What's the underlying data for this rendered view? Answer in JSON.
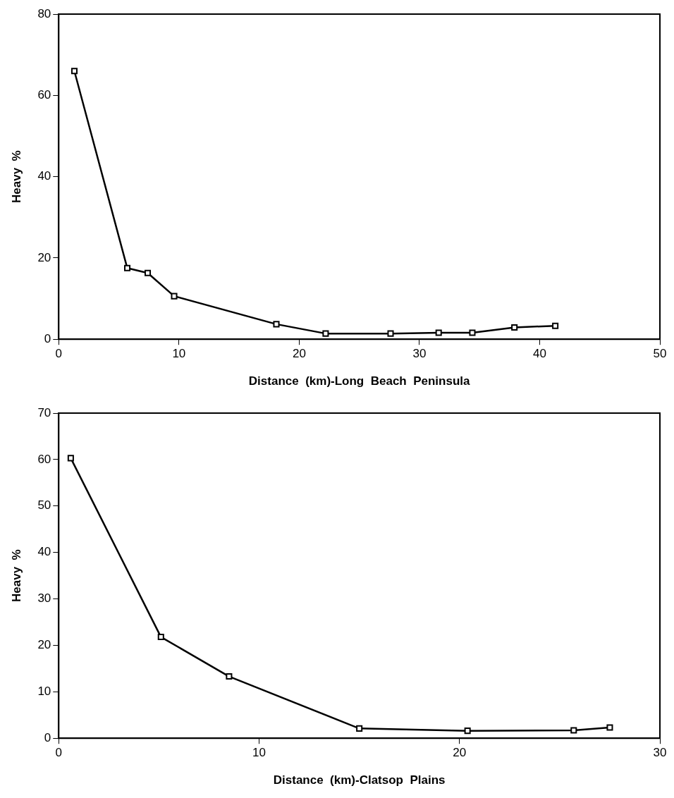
{
  "chart_data": [
    {
      "type": "line",
      "xlabel": "Distance  (km)-Long  Beach  Peninsula",
      "ylabel": "Heavy  %",
      "marker": "square",
      "line_style": "solid",
      "grid": false,
      "legend": false,
      "xlim": [
        0,
        50
      ],
      "xticks": [
        0,
        10,
        20,
        30,
        40,
        50
      ],
      "ylim": [
        0,
        80
      ],
      "yticks": [
        0,
        20,
        40,
        60,
        80
      ],
      "series": [
        {
          "color": "#000000",
          "x": [
            1.3,
            5.7,
            7.4,
            9.6,
            18.1,
            22.2,
            27.6,
            31.6,
            34.4,
            37.9,
            41.3
          ],
          "values": [
            66,
            17.5,
            16.3,
            10.6,
            3.7,
            1.4,
            1.4,
            1.6,
            1.6,
            2.9,
            3.3
          ]
        }
      ]
    },
    {
      "type": "line",
      "xlabel": "Distance  (km)-Clatsop  Plains",
      "ylabel": "Heavy  %",
      "marker": "square",
      "line_style": "solid",
      "grid": false,
      "legend": false,
      "xlim": [
        0,
        30
      ],
      "xticks": [
        0,
        10,
        20,
        30
      ],
      "ylim": [
        0,
        70
      ],
      "yticks": [
        0,
        10,
        20,
        30,
        40,
        50,
        60,
        70
      ],
      "series": [
        {
          "color": "#000000",
          "x": [
            0.6,
            5.1,
            8.5,
            15.0,
            20.4,
            25.7,
            27.5
          ],
          "values": [
            60.3,
            21.8,
            13.3,
            2.1,
            1.6,
            1.7,
            2.3
          ]
        }
      ]
    }
  ]
}
